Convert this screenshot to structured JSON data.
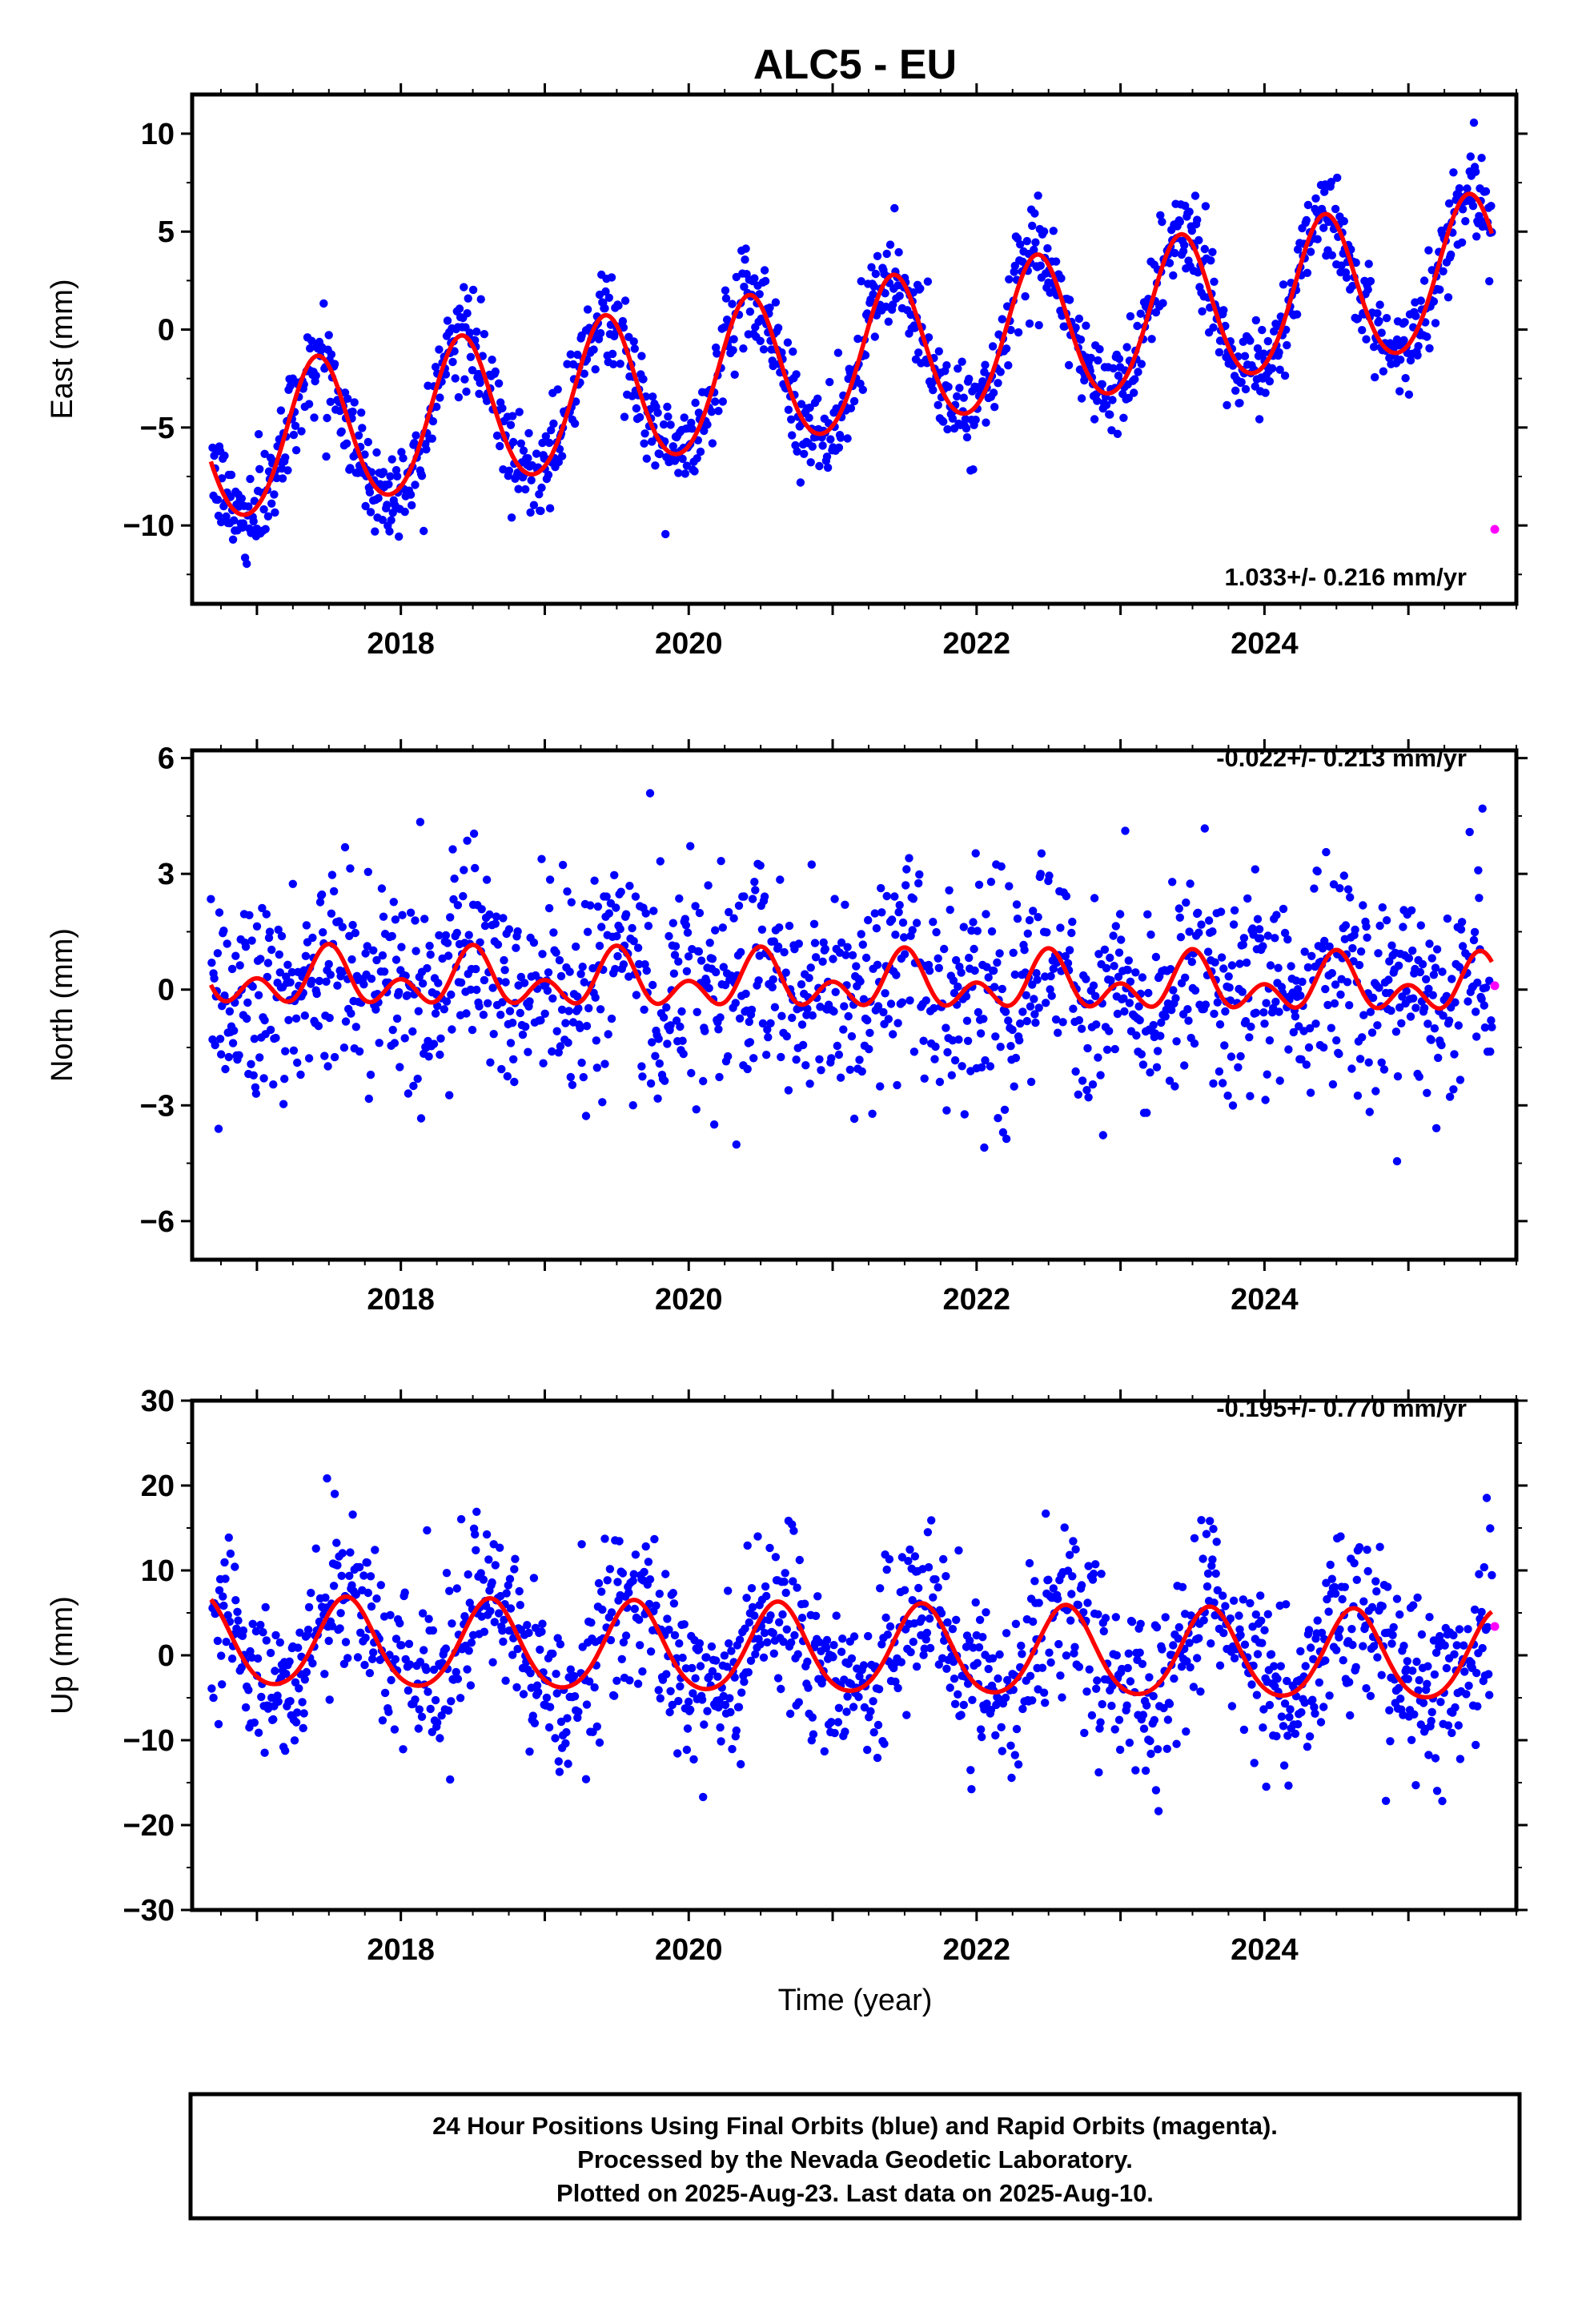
{
  "title": "ALC5 - EU",
  "xlabel": "Time (year)",
  "colors": {
    "final": "#0000ff",
    "rapid": "#ff00ff",
    "model": "#ff0000",
    "frame": "#000000"
  },
  "footer": {
    "line1": "24 Hour Positions Using Final Orbits (blue) and Rapid Orbits (magenta).",
    "line2": "Processed by the Nevada Geodetic Laboratory.",
    "line3": "Plotted on 2025-Aug-23. Last data on 2025-Aug-10."
  },
  "chart_data": [
    {
      "type": "scatter",
      "component": "east",
      "ylabel": "East (mm)",
      "rate_label": "1.033+/- 0.216 mm/yr",
      "xlim": [
        2016.55,
        2025.75
      ],
      "ylim": [
        -14,
        12
      ],
      "xticks": [
        2018,
        2020,
        2022,
        2024
      ],
      "xtick_labels": [
        "2018",
        "2020",
        "2022",
        "2024"
      ],
      "yticks": [
        -10,
        -5,
        0,
        5,
        10
      ],
      "ytick_labels": [
        "−10",
        "−5",
        "0",
        "5",
        "10"
      ],
      "data_range": [
        2016.68,
        2025.58
      ],
      "model": {
        "ref_epoch": 2016.68,
        "offset": -6.2,
        "rate": 1.033,
        "annual_amp": 3.8,
        "annual_phase_year": 2017.42,
        "semiannual_amp": 0.3,
        "scatter_sd": 1.2
      },
      "rapid_points": [
        {
          "x": 2025.6,
          "y": -10.2
        }
      ]
    },
    {
      "type": "scatter",
      "component": "north",
      "ylabel": "North (mm)",
      "rate_label": "-0.022+/- 0.213 mm/yr",
      "xlim": [
        2016.55,
        2025.75
      ],
      "ylim": [
        -7,
        6.2
      ],
      "xticks": [
        2018,
        2020,
        2022,
        2024
      ],
      "xtick_labels": [
        "2018",
        "2020",
        "2022",
        "2024"
      ],
      "yticks": [
        -6,
        -3,
        0,
        3,
        6
      ],
      "ytick_labels": [
        "−6",
        "−3",
        "0",
        "3",
        "6"
      ],
      "data_range": [
        2016.68,
        2025.58
      ],
      "model": {
        "ref_epoch": 2016.68,
        "offset": 0.25,
        "rate": -0.022,
        "annual_amp": 0.45,
        "annual_phase_year": 2017.5,
        "semiannual_amp": 0.5,
        "scatter_sd": 1.4
      },
      "rapid_points": [
        {
          "x": 2025.6,
          "y": 0.1
        }
      ]
    },
    {
      "type": "scatter",
      "component": "up",
      "ylabel": "Up (mm)",
      "rate_label": "-0.195+/- 0.770 mm/yr",
      "xlim": [
        2016.55,
        2025.75
      ],
      "ylim": [
        -30,
        30
      ],
      "xticks": [
        2018,
        2020,
        2022,
        2024
      ],
      "xtick_labels": [
        "2018",
        "2020",
        "2022",
        "2024"
      ],
      "yticks": [
        -30,
        -20,
        -10,
        0,
        10,
        20,
        30
      ],
      "ytick_labels": [
        "−30",
        "−20",
        "−10",
        "0",
        "10",
        "20",
        "30"
      ],
      "data_range": [
        2016.68,
        2025.58
      ],
      "model": {
        "ref_epoch": 2016.68,
        "offset": 1.3,
        "rate": -0.195,
        "annual_amp": 5.2,
        "annual_phase_year": 2017.62,
        "semiannual_amp": 0.6,
        "scatter_sd": 5.0
      },
      "rapid_points": [
        {
          "x": 2025.6,
          "y": 3.4
        }
      ]
    }
  ]
}
